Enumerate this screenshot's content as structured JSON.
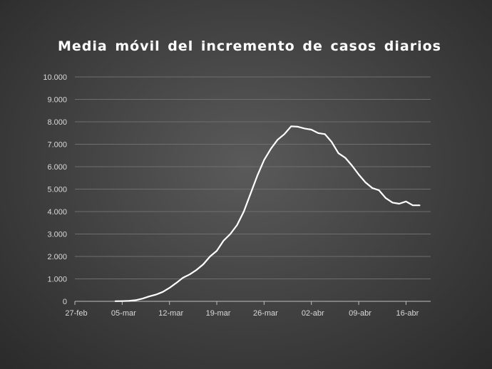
{
  "chart_data": {
    "type": "line",
    "title": "Media móvil del incremento de casos diarios",
    "xlabel": "",
    "ylabel": "",
    "ylim": [
      0,
      10000
    ],
    "y_ticks": [
      0,
      1000,
      2000,
      3000,
      4000,
      5000,
      6000,
      7000,
      8000,
      9000,
      10000
    ],
    "y_tick_labels": [
      "0",
      "1.000",
      "2.000",
      "3.000",
      "4.000",
      "5.000",
      "6.000",
      "7.000",
      "8.000",
      "9.000",
      "10.000"
    ],
    "x_tick_labels": [
      "27-feb",
      "05-mar",
      "12-mar",
      "19-mar",
      "26-mar",
      "02-abr",
      "09-abr",
      "16-abr"
    ],
    "grid": true,
    "line_color": "#ffffff",
    "series": [
      {
        "x": [
          "27-feb",
          "28-feb",
          "29-feb",
          "01-mar",
          "02-mar",
          "03-mar",
          "04-mar",
          "05-mar",
          "06-mar",
          "07-mar",
          "08-mar",
          "09-mar",
          "10-mar",
          "11-mar",
          "12-mar",
          "13-mar",
          "14-mar",
          "15-mar",
          "16-mar",
          "17-mar",
          "18-mar",
          "19-mar",
          "20-mar",
          "21-mar",
          "22-mar",
          "23-mar",
          "24-mar",
          "25-mar",
          "26-mar",
          "27-mar",
          "28-mar",
          "29-mar",
          "30-mar",
          "31-mar",
          "01-abr",
          "02-abr",
          "03-abr",
          "04-abr",
          "05-abr",
          "06-abr",
          "07-abr",
          "08-abr",
          "09-abr",
          "10-abr",
          "11-abr",
          "12-abr",
          "13-abr",
          "14-abr",
          "15-abr",
          "16-abr",
          "17-abr",
          "18-abr"
        ],
        "values": [
          null,
          null,
          null,
          null,
          null,
          null,
          5,
          10,
          20,
          50,
          120,
          220,
          300,
          420,
          600,
          820,
          1050,
          1200,
          1400,
          1650,
          2000,
          2250,
          2700,
          3000,
          3400,
          4000,
          4800,
          5600,
          6300,
          6800,
          7200,
          7450,
          7800,
          7780,
          7700,
          7650,
          7500,
          7450,
          7100,
          6600,
          6400,
          6050,
          5650,
          5300,
          5050,
          4950,
          4600,
          4400,
          4350,
          4450,
          4280,
          4280
        ]
      }
    ]
  }
}
